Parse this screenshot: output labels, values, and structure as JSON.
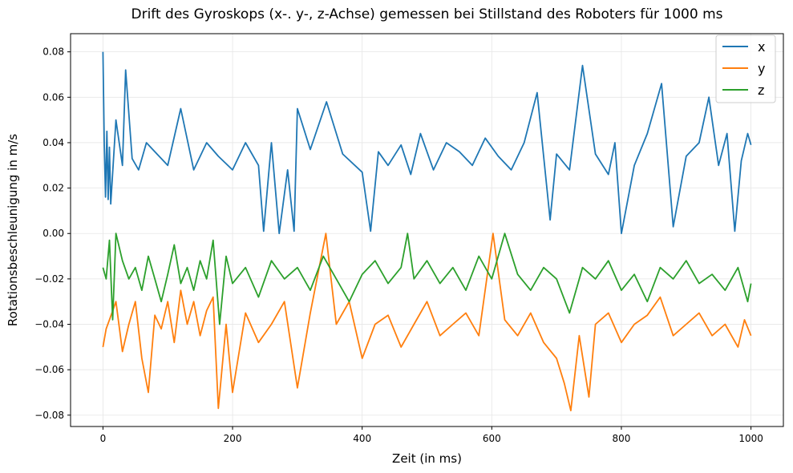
{
  "chart_data": {
    "type": "line",
    "title": "Drift des Gyroskops (x-. y-, z-Achse) gemessen bei Stillstand des Roboters für 1000 ms",
    "xlabel": "Zeit (in ms)",
    "ylabel": "Rotationsbeschleunigung in m/s",
    "xlim": [
      -50,
      1050
    ],
    "ylim": [
      -0.085,
      0.088
    ],
    "xticks": [
      0,
      200,
      400,
      600,
      800,
      1000
    ],
    "xtick_labels": [
      "0",
      "200",
      "400",
      "600",
      "800",
      "1000"
    ],
    "yticks": [
      0.08,
      0.06,
      0.04,
      0.02,
      0.0,
      -0.02,
      -0.04,
      -0.06,
      -0.08
    ],
    "ytick_labels": [
      "0.08",
      "0.06",
      "0.04",
      "0.02",
      "0.00",
      "−0.02",
      "−0.04",
      "−0.06",
      "−0.08"
    ],
    "grid": true,
    "legend_position": "top-right",
    "series": [
      {
        "name": "x",
        "color": "#1f77b4",
        "x": [
          0,
          2,
          4,
          6,
          8,
          10,
          12,
          20,
          30,
          35,
          45,
          55,
          67,
          80,
          100,
          120,
          140,
          160,
          178,
          200,
          220,
          240,
          248,
          260,
          272,
          285,
          295,
          300,
          320,
          345,
          370,
          400,
          413,
          425,
          440,
          460,
          475,
          490,
          510,
          530,
          550,
          570,
          590,
          610,
          630,
          650,
          670,
          690,
          700,
          720,
          740,
          760,
          780,
          790,
          800,
          820,
          840,
          862,
          880,
          900,
          920,
          935,
          950,
          963,
          975,
          985,
          995,
          1000
        ],
        "y": [
          0.08,
          0.04,
          0.016,
          0.045,
          0.015,
          0.038,
          0.013,
          0.05,
          0.03,
          0.072,
          0.033,
          0.028,
          0.04,
          0.036,
          0.03,
          0.055,
          0.028,
          0.04,
          0.034,
          0.028,
          0.04,
          0.03,
          0.001,
          0.04,
          0.0,
          0.028,
          0.001,
          0.055,
          0.037,
          0.058,
          0.035,
          0.027,
          0.001,
          0.036,
          0.03,
          0.039,
          0.026,
          0.044,
          0.028,
          0.04,
          0.036,
          0.03,
          0.042,
          0.034,
          0.028,
          0.04,
          0.062,
          0.006,
          0.035,
          0.028,
          0.074,
          0.035,
          0.026,
          0.04,
          0.0,
          0.03,
          0.044,
          0.066,
          0.003,
          0.034,
          0.04,
          0.06,
          0.03,
          0.044,
          0.001,
          0.032,
          0.044,
          0.039
        ]
      },
      {
        "name": "y",
        "color": "#ff7f0e",
        "x": [
          0,
          5,
          10,
          20,
          30,
          40,
          50,
          60,
          70,
          80,
          90,
          100,
          110,
          120,
          130,
          140,
          150,
          160,
          170,
          178,
          190,
          200,
          220,
          240,
          260,
          280,
          300,
          320,
          344,
          360,
          380,
          400,
          420,
          440,
          460,
          480,
          500,
          520,
          540,
          560,
          580,
          602,
          620,
          640,
          660,
          680,
          700,
          712,
          722,
          735,
          750,
          760,
          780,
          800,
          820,
          840,
          860,
          880,
          900,
          920,
          940,
          960,
          980,
          990,
          1000
        ],
        "y": [
          -0.05,
          -0.042,
          -0.038,
          -0.03,
          -0.052,
          -0.04,
          -0.03,
          -0.055,
          -0.07,
          -0.036,
          -0.042,
          -0.03,
          -0.048,
          -0.025,
          -0.04,
          -0.03,
          -0.045,
          -0.034,
          -0.028,
          -0.077,
          -0.04,
          -0.07,
          -0.035,
          -0.048,
          -0.04,
          -0.03,
          -0.068,
          -0.035,
          0.0,
          -0.04,
          -0.03,
          -0.055,
          -0.04,
          -0.036,
          -0.05,
          -0.04,
          -0.03,
          -0.045,
          -0.04,
          -0.035,
          -0.045,
          0.0,
          -0.038,
          -0.045,
          -0.035,
          -0.048,
          -0.055,
          -0.066,
          -0.078,
          -0.045,
          -0.072,
          -0.04,
          -0.035,
          -0.048,
          -0.04,
          -0.036,
          -0.028,
          -0.045,
          -0.04,
          -0.035,
          -0.045,
          -0.04,
          -0.05,
          -0.038,
          -0.045
        ]
      },
      {
        "name": "z",
        "color": "#2ca02c",
        "x": [
          0,
          5,
          10,
          15,
          20,
          30,
          40,
          50,
          60,
          70,
          80,
          90,
          100,
          110,
          120,
          130,
          140,
          150,
          160,
          170,
          180,
          190,
          200,
          220,
          240,
          260,
          280,
          300,
          320,
          340,
          360,
          380,
          400,
          420,
          440,
          460,
          470,
          480,
          500,
          520,
          540,
          560,
          580,
          600,
          620,
          640,
          660,
          680,
          700,
          720,
          740,
          760,
          780,
          800,
          820,
          840,
          860,
          880,
          900,
          920,
          940,
          960,
          980,
          995,
          1000
        ],
        "y": [
          -0.015,
          -0.02,
          -0.003,
          -0.038,
          0.0,
          -0.012,
          -0.02,
          -0.015,
          -0.025,
          -0.01,
          -0.02,
          -0.03,
          -0.018,
          -0.005,
          -0.022,
          -0.015,
          -0.025,
          -0.012,
          -0.02,
          -0.003,
          -0.04,
          -0.01,
          -0.022,
          -0.015,
          -0.028,
          -0.012,
          -0.02,
          -0.015,
          -0.025,
          -0.01,
          -0.02,
          -0.03,
          -0.018,
          -0.012,
          -0.022,
          -0.015,
          0.0,
          -0.02,
          -0.012,
          -0.022,
          -0.015,
          -0.025,
          -0.01,
          -0.02,
          0.0,
          -0.018,
          -0.025,
          -0.015,
          -0.02,
          -0.035,
          -0.015,
          -0.02,
          -0.012,
          -0.025,
          -0.018,
          -0.03,
          -0.015,
          -0.02,
          -0.012,
          -0.022,
          -0.018,
          -0.025,
          -0.015,
          -0.03,
          -0.022
        ]
      }
    ]
  }
}
